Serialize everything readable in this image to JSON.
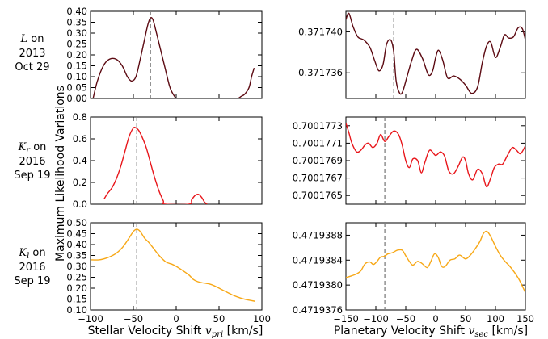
{
  "row_labels": [
    {
      "symbol": "L",
      "symbol_sub": "",
      "on": " on",
      "year": "2013",
      "date": "Oct 29"
    },
    {
      "symbol": "K",
      "symbol_sub": "r",
      "on": " on",
      "year": "2016",
      "date": "Sep 19"
    },
    {
      "symbol": "K",
      "symbol_sub": "l",
      "on": " on",
      "year": "2016",
      "date": "Sep 19"
    }
  ],
  "ylabel": "Maximum Likelihood Variations",
  "xlabel_left": {
    "text": "Stellar Velocity Shift ",
    "var": "v",
    "sub": "pri",
    "unit": " [km/s]"
  },
  "xlabel_right": {
    "text": "Planetary Velocity Shift ",
    "var": "v",
    "sub": "sec",
    "unit": " [km/s]"
  },
  "chart_data": [
    {
      "type": "line",
      "id": "L-stellar",
      "color": "#5c0a12",
      "xlim": [
        -100,
        100
      ],
      "ylim": [
        0.0,
        0.4
      ],
      "yticks": [
        0.0,
        0.05,
        0.1,
        0.15,
        0.2,
        0.25,
        0.3,
        0.35,
        0.4
      ],
      "ytick_labels": [
        "0.00",
        "0.05",
        "0.10",
        "0.15",
        "0.20",
        "0.25",
        "0.30",
        "0.35",
        "0.40"
      ],
      "xticks": [
        -100,
        -50,
        0,
        50,
        100
      ],
      "xtick_labels": [],
      "vline": -30,
      "x": [
        -97,
        -92,
        -85,
        -78,
        -70,
        -63,
        -57,
        -52,
        -47,
        -42,
        -37,
        -33,
        -30,
        -27,
        -23,
        -18,
        -13,
        -8,
        -5,
        -2,
        0,
        3,
        68,
        72,
        76,
        80,
        85,
        88,
        91
      ],
      "y": [
        0.0,
        0.08,
        0.15,
        0.18,
        0.18,
        0.15,
        0.1,
        0.08,
        0.1,
        0.18,
        0.27,
        0.34,
        0.37,
        0.36,
        0.3,
        0.22,
        0.14,
        0.06,
        0.03,
        0.01,
        0.0,
        0.0,
        0.0,
        0.0,
        0.01,
        0.02,
        0.05,
        0.1,
        0.14
      ]
    },
    {
      "type": "line",
      "id": "L-planetary",
      "color": "#5c0a12",
      "xlim": [
        -150,
        150
      ],
      "ylim": [
        0.3717335,
        0.371742
      ],
      "yticks": [
        0.371736,
        0.37174
      ],
      "ytick_labels": [
        "0.371736",
        "0.371740"
      ],
      "xticks": [
        -150,
        -100,
        -50,
        0,
        50,
        100,
        150
      ],
      "xtick_labels": [],
      "vline": -70,
      "x": [
        -150,
        -145,
        -138,
        -130,
        -120,
        -110,
        -102,
        -95,
        -88,
        -82,
        -75,
        -70,
        -66,
        -60,
        -55,
        -48,
        -40,
        -32,
        -22,
        -12,
        -5,
        0,
        5,
        12,
        20,
        30,
        40,
        50,
        60,
        70,
        78,
        85,
        92,
        100,
        108,
        115,
        122,
        130,
        138,
        145,
        150
      ],
      "y": [
        0.3717412,
        0.3717418,
        0.3717405,
        0.3717395,
        0.3717392,
        0.3717385,
        0.3717372,
        0.3717362,
        0.3717368,
        0.3717388,
        0.3717392,
        0.371738,
        0.3717352,
        0.371734,
        0.3717342,
        0.3717356,
        0.3717372,
        0.3717383,
        0.3717374,
        0.3717358,
        0.3717362,
        0.3717375,
        0.3717382,
        0.3717372,
        0.3717355,
        0.3717357,
        0.3717354,
        0.3717348,
        0.371734,
        0.3717346,
        0.371737,
        0.3717386,
        0.371739,
        0.3717375,
        0.3717385,
        0.3717397,
        0.3717394,
        0.3717395,
        0.3717404,
        0.3717403,
        0.3717392
      ]
    },
    {
      "type": "line",
      "id": "Kr-stellar",
      "color": "#e8161b",
      "xlim": [
        -100,
        100
      ],
      "ylim": [
        0.0,
        0.8
      ],
      "yticks": [
        0.0,
        0.2,
        0.4,
        0.6,
        0.8
      ],
      "ytick_labels": [
        "0.0",
        "0.2",
        "0.4",
        "0.6",
        "0.8"
      ],
      "xticks": [
        -100,
        -50,
        0,
        50,
        100
      ],
      "xtick_labels": [],
      "vline": -46,
      "x": [
        -84,
        -80,
        -75,
        -70,
        -65,
        -60,
        -55,
        -50,
        -47,
        -44,
        -40,
        -35,
        -30,
        -25,
        -20,
        -15,
        -13,
        15,
        18,
        22,
        26,
        30,
        33,
        36
      ],
      "y": [
        0.05,
        0.1,
        0.15,
        0.23,
        0.34,
        0.48,
        0.62,
        0.7,
        0.7,
        0.68,
        0.62,
        0.52,
        0.38,
        0.24,
        0.12,
        0.03,
        0.0,
        0.0,
        0.04,
        0.08,
        0.09,
        0.06,
        0.02,
        0.0
      ]
    },
    {
      "type": "line",
      "id": "Kr-planetary",
      "color": "#e8161b",
      "xlim": [
        -150,
        150
      ],
      "ylim": [
        0.7001764,
        0.7001774
      ],
      "yticks": [
        0.7001765,
        0.7001767,
        0.7001769,
        0.7001771,
        0.7001773
      ],
      "ytick_labels": [
        "0.7001765",
        "0.7001767",
        "0.7001769",
        "0.7001771",
        "0.7001773"
      ],
      "xticks": [
        -150,
        -100,
        -50,
        0,
        50,
        100,
        150
      ],
      "xtick_labels": [],
      "vline": -85,
      "x": [
        -150,
        -145,
        -140,
        -132,
        -125,
        -118,
        -112,
        -105,
        -98,
        -92,
        -85,
        -78,
        -70,
        -62,
        -56,
        -50,
        -44,
        -38,
        -30,
        -24,
        -18,
        -10,
        0,
        8,
        15,
        22,
        30,
        38,
        45,
        50,
        55,
        62,
        70,
        78,
        85,
        92,
        98,
        105,
        112,
        120,
        128,
        135,
        142,
        150
      ],
      "y": [
        0.70017733,
        0.70017722,
        0.7001771,
        0.700177,
        0.70017702,
        0.70017708,
        0.7001771,
        0.70017705,
        0.7001771,
        0.7001772,
        0.70017712,
        0.70017718,
        0.70017724,
        0.7001772,
        0.70017708,
        0.7001769,
        0.70017682,
        0.70017692,
        0.7001769,
        0.70017676,
        0.70017688,
        0.70017702,
        0.70017696,
        0.700177,
        0.70017695,
        0.70017678,
        0.70017675,
        0.70017684,
        0.70017694,
        0.7001769,
        0.70017675,
        0.70017668,
        0.7001768,
        0.70017675,
        0.7001766,
        0.7001767,
        0.70017682,
        0.70017686,
        0.70017686,
        0.70017696,
        0.70017705,
        0.70017702,
        0.70017698,
        0.70017707
      ]
    },
    {
      "type": "line",
      "id": "Kl-stellar",
      "color": "#f7a817",
      "xlim": [
        -100,
        100
      ],
      "ylim": [
        0.1,
        0.5
      ],
      "yticks": [
        0.1,
        0.15,
        0.2,
        0.25,
        0.3,
        0.35,
        0.4,
        0.45,
        0.5
      ],
      "ytick_labels": [
        "0.10",
        "0.15",
        "0.20",
        "0.25",
        "0.30",
        "0.35",
        "0.40",
        "0.45",
        "0.50"
      ],
      "xticks": [
        -100,
        -50,
        0,
        50,
        100
      ],
      "xtick_labels": [
        "−100",
        "−50",
        "0",
        "50",
        "100"
      ],
      "vline": -46,
      "x": [
        -100,
        -90,
        -80,
        -70,
        -62,
        -55,
        -50,
        -46,
        -42,
        -37,
        -32,
        -26,
        -20,
        -12,
        -5,
        0,
        8,
        15,
        20,
        25,
        30,
        38,
        45,
        55,
        65,
        75,
        85,
        92
      ],
      "y": [
        0.33,
        0.33,
        0.34,
        0.36,
        0.39,
        0.43,
        0.46,
        0.47,
        0.46,
        0.43,
        0.41,
        0.38,
        0.35,
        0.32,
        0.31,
        0.3,
        0.28,
        0.26,
        0.24,
        0.23,
        0.225,
        0.22,
        0.21,
        0.19,
        0.17,
        0.155,
        0.145,
        0.14
      ]
    },
    {
      "type": "line",
      "id": "Kl-planetary",
      "color": "#f7a817",
      "xlim": [
        -150,
        150
      ],
      "ylim": [
        0.4719376,
        0.471939
      ],
      "yticks": [
        0.4719376,
        0.471938,
        0.4719384,
        0.4719388
      ],
      "ytick_labels": [
        "0.4719376",
        "0.4719380",
        "0.4719384",
        "0.4719388"
      ],
      "xticks": [
        -150,
        -100,
        -50,
        0,
        50,
        100,
        150
      ],
      "xtick_labels": [
        "−150",
        "−100",
        "−50",
        "0",
        "50",
        "100",
        "150"
      ],
      "vline": -85,
      "x": [
        -150,
        -140,
        -132,
        -125,
        -118,
        -110,
        -104,
        -98,
        -92,
        -86,
        -80,
        -72,
        -64,
        -56,
        -50,
        -44,
        -38,
        -30,
        -22,
        -14,
        -8,
        -2,
        4,
        10,
        16,
        24,
        32,
        40,
        50,
        58,
        66,
        74,
        80,
        86,
        92,
        100,
        108,
        116,
        124,
        132,
        140,
        146,
        150
      ],
      "y": [
        0.47193812,
        0.47193815,
        0.47193818,
        0.47193823,
        0.47193834,
        0.47193837,
        0.47193833,
        0.47193838,
        0.47193845,
        0.47193846,
        0.4719385,
        0.47193852,
        0.47193856,
        0.47193856,
        0.47193847,
        0.47193838,
        0.47193832,
        0.47193838,
        0.47193834,
        0.47193828,
        0.47193838,
        0.4719385,
        0.47193845,
        0.4719383,
        0.4719383,
        0.4719384,
        0.47193842,
        0.47193848,
        0.47193842,
        0.47193848,
        0.47193858,
        0.4719387,
        0.47193883,
        0.47193886,
        0.47193878,
        0.47193862,
        0.47193848,
        0.47193838,
        0.4719383,
        0.4719382,
        0.47193808,
        0.47193796,
        0.47193788
      ]
    }
  ]
}
